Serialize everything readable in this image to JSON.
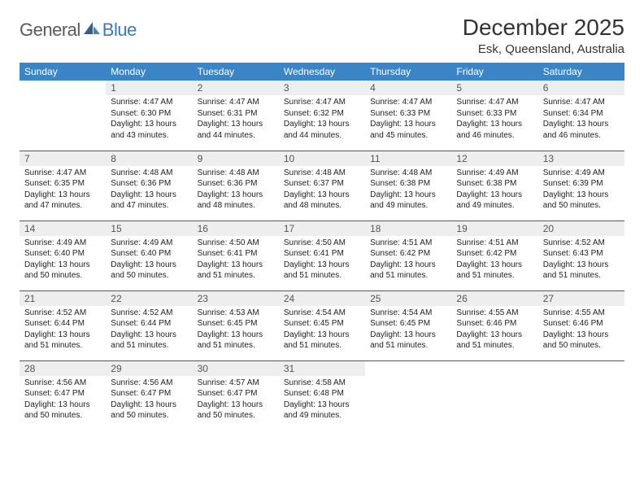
{
  "logo": {
    "text1": "General",
    "text2": "Blue"
  },
  "title": "December 2025",
  "location": "Esk, Queensland, Australia",
  "colors": {
    "header_bg": "#3a85c6",
    "header_text": "#ffffff",
    "daynum_bg": "#eeeeee",
    "daynum_text": "#555555",
    "border": "#2f5e8f",
    "logo_gray": "#5a5a5a",
    "logo_blue": "#3a7ab8",
    "title_color": "#333333",
    "detail_text": "#222222"
  },
  "weekdays": [
    "Sunday",
    "Monday",
    "Tuesday",
    "Wednesday",
    "Thursday",
    "Friday",
    "Saturday"
  ],
  "weeks": [
    [
      {
        "n": "",
        "sr": "",
        "ss": "",
        "dl": ""
      },
      {
        "n": "1",
        "sr": "Sunrise: 4:47 AM",
        "ss": "Sunset: 6:30 PM",
        "dl": "Daylight: 13 hours and 43 minutes."
      },
      {
        "n": "2",
        "sr": "Sunrise: 4:47 AM",
        "ss": "Sunset: 6:31 PM",
        "dl": "Daylight: 13 hours and 44 minutes."
      },
      {
        "n": "3",
        "sr": "Sunrise: 4:47 AM",
        "ss": "Sunset: 6:32 PM",
        "dl": "Daylight: 13 hours and 44 minutes."
      },
      {
        "n": "4",
        "sr": "Sunrise: 4:47 AM",
        "ss": "Sunset: 6:33 PM",
        "dl": "Daylight: 13 hours and 45 minutes."
      },
      {
        "n": "5",
        "sr": "Sunrise: 4:47 AM",
        "ss": "Sunset: 6:33 PM",
        "dl": "Daylight: 13 hours and 46 minutes."
      },
      {
        "n": "6",
        "sr": "Sunrise: 4:47 AM",
        "ss": "Sunset: 6:34 PM",
        "dl": "Daylight: 13 hours and 46 minutes."
      }
    ],
    [
      {
        "n": "7",
        "sr": "Sunrise: 4:47 AM",
        "ss": "Sunset: 6:35 PM",
        "dl": "Daylight: 13 hours and 47 minutes."
      },
      {
        "n": "8",
        "sr": "Sunrise: 4:48 AM",
        "ss": "Sunset: 6:36 PM",
        "dl": "Daylight: 13 hours and 47 minutes."
      },
      {
        "n": "9",
        "sr": "Sunrise: 4:48 AM",
        "ss": "Sunset: 6:36 PM",
        "dl": "Daylight: 13 hours and 48 minutes."
      },
      {
        "n": "10",
        "sr": "Sunrise: 4:48 AM",
        "ss": "Sunset: 6:37 PM",
        "dl": "Daylight: 13 hours and 48 minutes."
      },
      {
        "n": "11",
        "sr": "Sunrise: 4:48 AM",
        "ss": "Sunset: 6:38 PM",
        "dl": "Daylight: 13 hours and 49 minutes."
      },
      {
        "n": "12",
        "sr": "Sunrise: 4:49 AM",
        "ss": "Sunset: 6:38 PM",
        "dl": "Daylight: 13 hours and 49 minutes."
      },
      {
        "n": "13",
        "sr": "Sunrise: 4:49 AM",
        "ss": "Sunset: 6:39 PM",
        "dl": "Daylight: 13 hours and 50 minutes."
      }
    ],
    [
      {
        "n": "14",
        "sr": "Sunrise: 4:49 AM",
        "ss": "Sunset: 6:40 PM",
        "dl": "Daylight: 13 hours and 50 minutes."
      },
      {
        "n": "15",
        "sr": "Sunrise: 4:49 AM",
        "ss": "Sunset: 6:40 PM",
        "dl": "Daylight: 13 hours and 50 minutes."
      },
      {
        "n": "16",
        "sr": "Sunrise: 4:50 AM",
        "ss": "Sunset: 6:41 PM",
        "dl": "Daylight: 13 hours and 51 minutes."
      },
      {
        "n": "17",
        "sr": "Sunrise: 4:50 AM",
        "ss": "Sunset: 6:41 PM",
        "dl": "Daylight: 13 hours and 51 minutes."
      },
      {
        "n": "18",
        "sr": "Sunrise: 4:51 AM",
        "ss": "Sunset: 6:42 PM",
        "dl": "Daylight: 13 hours and 51 minutes."
      },
      {
        "n": "19",
        "sr": "Sunrise: 4:51 AM",
        "ss": "Sunset: 6:42 PM",
        "dl": "Daylight: 13 hours and 51 minutes."
      },
      {
        "n": "20",
        "sr": "Sunrise: 4:52 AM",
        "ss": "Sunset: 6:43 PM",
        "dl": "Daylight: 13 hours and 51 minutes."
      }
    ],
    [
      {
        "n": "21",
        "sr": "Sunrise: 4:52 AM",
        "ss": "Sunset: 6:44 PM",
        "dl": "Daylight: 13 hours and 51 minutes."
      },
      {
        "n": "22",
        "sr": "Sunrise: 4:52 AM",
        "ss": "Sunset: 6:44 PM",
        "dl": "Daylight: 13 hours and 51 minutes."
      },
      {
        "n": "23",
        "sr": "Sunrise: 4:53 AM",
        "ss": "Sunset: 6:45 PM",
        "dl": "Daylight: 13 hours and 51 minutes."
      },
      {
        "n": "24",
        "sr": "Sunrise: 4:54 AM",
        "ss": "Sunset: 6:45 PM",
        "dl": "Daylight: 13 hours and 51 minutes."
      },
      {
        "n": "25",
        "sr": "Sunrise: 4:54 AM",
        "ss": "Sunset: 6:45 PM",
        "dl": "Daylight: 13 hours and 51 minutes."
      },
      {
        "n": "26",
        "sr": "Sunrise: 4:55 AM",
        "ss": "Sunset: 6:46 PM",
        "dl": "Daylight: 13 hours and 51 minutes."
      },
      {
        "n": "27",
        "sr": "Sunrise: 4:55 AM",
        "ss": "Sunset: 6:46 PM",
        "dl": "Daylight: 13 hours and 50 minutes."
      }
    ],
    [
      {
        "n": "28",
        "sr": "Sunrise: 4:56 AM",
        "ss": "Sunset: 6:47 PM",
        "dl": "Daylight: 13 hours and 50 minutes."
      },
      {
        "n": "29",
        "sr": "Sunrise: 4:56 AM",
        "ss": "Sunset: 6:47 PM",
        "dl": "Daylight: 13 hours and 50 minutes."
      },
      {
        "n": "30",
        "sr": "Sunrise: 4:57 AM",
        "ss": "Sunset: 6:47 PM",
        "dl": "Daylight: 13 hours and 50 minutes."
      },
      {
        "n": "31",
        "sr": "Sunrise: 4:58 AM",
        "ss": "Sunset: 6:48 PM",
        "dl": "Daylight: 13 hours and 49 minutes."
      },
      {
        "n": "",
        "sr": "",
        "ss": "",
        "dl": ""
      },
      {
        "n": "",
        "sr": "",
        "ss": "",
        "dl": ""
      },
      {
        "n": "",
        "sr": "",
        "ss": "",
        "dl": ""
      }
    ]
  ]
}
